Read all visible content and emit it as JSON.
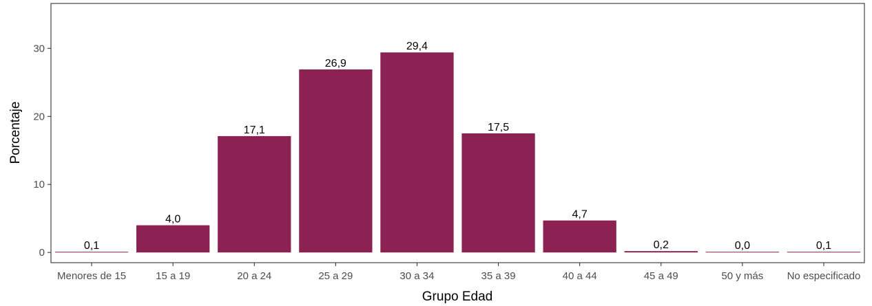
{
  "chart_data": {
    "type": "bar",
    "title": "",
    "xlabel": "Grupo Edad",
    "ylabel": "Porcentaje",
    "categories": [
      "Menores de 15",
      "15 a 19",
      "20 a 24",
      "25 a 29",
      "30 a 34",
      "35 a 39",
      "40 a 44",
      "45 a 49",
      "50 y más",
      "No especificado"
    ],
    "values": [
      0.1,
      4.0,
      17.1,
      26.9,
      29.4,
      17.5,
      4.7,
      0.2,
      0.0,
      0.1
    ],
    "data_labels": [
      "0,1",
      "4,0",
      "17,1",
      "26,9",
      "29,4",
      "17,5",
      "4,7",
      "0,2",
      "0,0",
      "0,1"
    ],
    "yticks": [
      0,
      10,
      20,
      30
    ],
    "ytick_labels": [
      "0",
      "10",
      "20",
      "30"
    ],
    "ylim": [
      -1.5,
      36.6
    ],
    "grid": false,
    "legend": "none",
    "bar_color": "#8b2252"
  }
}
